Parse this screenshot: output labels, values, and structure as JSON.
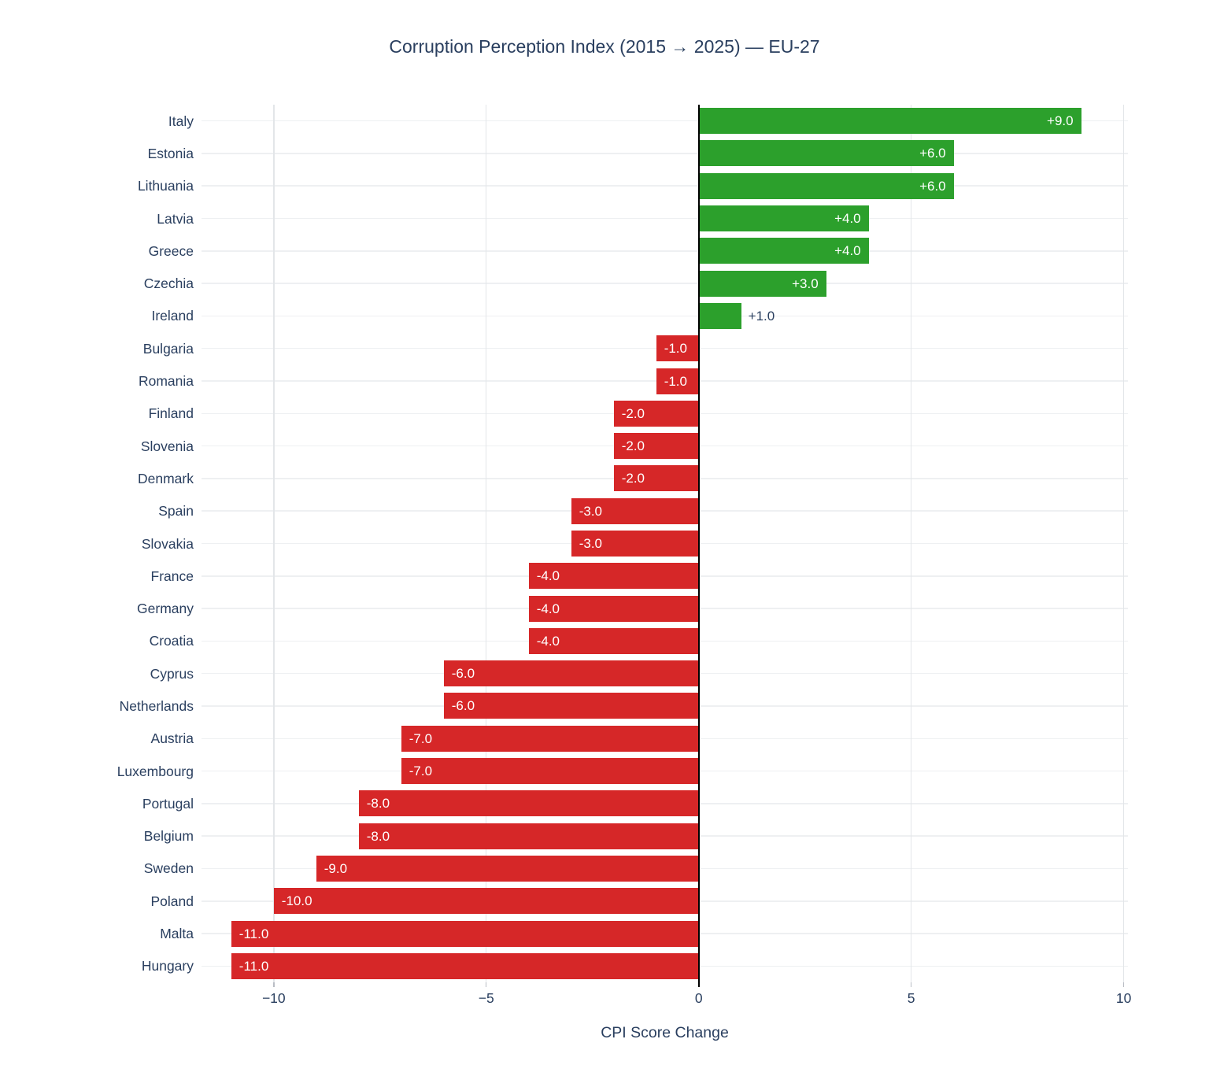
{
  "chart_data": {
    "type": "bar",
    "orientation": "horizontal",
    "title": "Corruption Perception Index (2015 → 2025) — EU-27",
    "xlabel": "CPI Score Change",
    "xlim": [
      -11.7,
      10.1
    ],
    "grid": true,
    "legend": false,
    "xticks": [
      {
        "value": -10,
        "label": "−10"
      },
      {
        "value": -5,
        "label": "−5"
      },
      {
        "value": 0,
        "label": "0"
      },
      {
        "value": 5,
        "label": "5"
      },
      {
        "value": 10,
        "label": "10"
      }
    ],
    "colors": {
      "positive": "#2ca02c",
      "negative": "#d62728",
      "text": "#2a3f5f",
      "inside_label": "#ffffff",
      "background": "#ffffff"
    },
    "rows": [
      {
        "country": "Italy",
        "value": 9,
        "label": "+9.0",
        "label_position": "inside"
      },
      {
        "country": "Estonia",
        "value": 6,
        "label": "+6.0",
        "label_position": "inside"
      },
      {
        "country": "Lithuania",
        "value": 6,
        "label": "+6.0",
        "label_position": "inside"
      },
      {
        "country": "Latvia",
        "value": 4,
        "label": "+4.0",
        "label_position": "inside"
      },
      {
        "country": "Greece",
        "value": 4,
        "label": "+4.0",
        "label_position": "inside"
      },
      {
        "country": "Czechia",
        "value": 3,
        "label": "+3.0",
        "label_position": "inside"
      },
      {
        "country": "Ireland",
        "value": 1,
        "label": "+1.0",
        "label_position": "outside"
      },
      {
        "country": "Bulgaria",
        "value": -1,
        "label": "-1.0",
        "label_position": "inside"
      },
      {
        "country": "Romania",
        "value": -1,
        "label": "-1.0",
        "label_position": "inside"
      },
      {
        "country": "Finland",
        "value": -2,
        "label": "-2.0",
        "label_position": "inside"
      },
      {
        "country": "Slovenia",
        "value": -2,
        "label": "-2.0",
        "label_position": "inside"
      },
      {
        "country": "Denmark",
        "value": -2,
        "label": "-2.0",
        "label_position": "inside"
      },
      {
        "country": "Spain",
        "value": -3,
        "label": "-3.0",
        "label_position": "inside"
      },
      {
        "country": "Slovakia",
        "value": -3,
        "label": "-3.0",
        "label_position": "inside"
      },
      {
        "country": "France",
        "value": -4,
        "label": "-4.0",
        "label_position": "inside"
      },
      {
        "country": "Germany",
        "value": -4,
        "label": "-4.0",
        "label_position": "inside"
      },
      {
        "country": "Croatia",
        "value": -4,
        "label": "-4.0",
        "label_position": "inside"
      },
      {
        "country": "Cyprus",
        "value": -6,
        "label": "-6.0",
        "label_position": "inside"
      },
      {
        "country": "Netherlands",
        "value": -6,
        "label": "-6.0",
        "label_position": "inside"
      },
      {
        "country": "Austria",
        "value": -7,
        "label": "-7.0",
        "label_position": "inside"
      },
      {
        "country": "Luxembourg",
        "value": -7,
        "label": "-7.0",
        "label_position": "inside"
      },
      {
        "country": "Portugal",
        "value": -8,
        "label": "-8.0",
        "label_position": "inside"
      },
      {
        "country": "Belgium",
        "value": -8,
        "label": "-8.0",
        "label_position": "inside"
      },
      {
        "country": "Sweden",
        "value": -9,
        "label": "-9.0",
        "label_position": "inside"
      },
      {
        "country": "Poland",
        "value": -10,
        "label": "-10.0",
        "label_position": "inside"
      },
      {
        "country": "Malta",
        "value": -11,
        "label": "-11.0",
        "label_position": "inside"
      },
      {
        "country": "Hungary",
        "value": -11,
        "label": "-11.0",
        "label_position": "inside"
      }
    ]
  }
}
